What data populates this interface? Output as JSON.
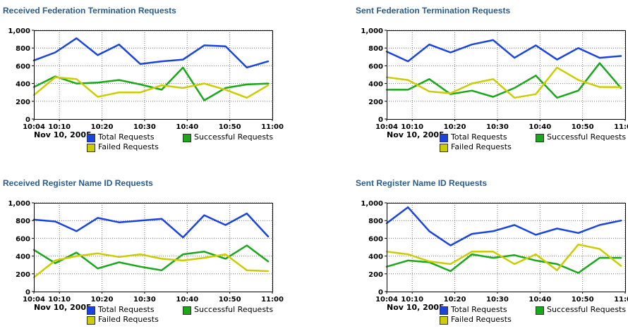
{
  "chart_data": [
    {
      "type": "line",
      "title": "Received Federation Termination Requests",
      "date_label": "Nov 10, 2005",
      "x_tick_labels": [
        "10:04",
        "10:10",
        "10:20",
        "10:30",
        "10:40",
        "10:50",
        "11:00"
      ],
      "y_tick_labels": [
        "0",
        "200",
        "400",
        "600",
        "800",
        "1,000"
      ],
      "ylim": [
        0,
        1000
      ],
      "grid": true,
      "x": [
        "10:04",
        "10:09",
        "10:14",
        "10:19",
        "10:24",
        "10:29",
        "10:34",
        "10:39",
        "10:44",
        "10:49",
        "10:54",
        "10:59"
      ],
      "series": [
        {
          "name": "Total Requests",
          "color": "#1a44e0",
          "values": [
            660,
            750,
            910,
            720,
            840,
            620,
            650,
            670,
            830,
            820,
            580,
            650
          ]
        },
        {
          "name": "Successful Requests",
          "color": "#1aa81a",
          "values": [
            360,
            480,
            400,
            410,
            440,
            390,
            330,
            580,
            210,
            350,
            390,
            400
          ]
        },
        {
          "name": "Failed Requests",
          "color": "#cccc00",
          "values": [
            270,
            470,
            450,
            250,
            300,
            300,
            380,
            350,
            400,
            330,
            240,
            380
          ]
        }
      ]
    },
    {
      "type": "line",
      "title": "Sent Federation Termination Requests",
      "date_label": "Nov 10, 2005",
      "x_tick_labels": [
        "10:04",
        "10:10",
        "10:20",
        "10:30",
        "10:40",
        "10:50",
        "11:00"
      ],
      "y_tick_labels": [
        "0",
        "200",
        "400",
        "600",
        "800",
        "1,000"
      ],
      "ylim": [
        0,
        1000
      ],
      "grid": true,
      "x": [
        "10:04",
        "10:09",
        "10:14",
        "10:19",
        "10:24",
        "10:29",
        "10:34",
        "10:39",
        "10:44",
        "10:49",
        "10:54",
        "10:59"
      ],
      "series": [
        {
          "name": "Total Requests",
          "color": "#1a44e0",
          "values": [
            760,
            650,
            840,
            750,
            840,
            890,
            690,
            830,
            670,
            800,
            690,
            710
          ]
        },
        {
          "name": "Successful Requests",
          "color": "#1aa81a",
          "values": [
            330,
            330,
            450,
            280,
            320,
            250,
            350,
            490,
            240,
            320,
            630,
            350
          ]
        },
        {
          "name": "Failed Requests",
          "color": "#cccc00",
          "values": [
            470,
            440,
            310,
            290,
            400,
            450,
            240,
            280,
            580,
            440,
            360,
            360
          ]
        }
      ]
    },
    {
      "type": "line",
      "title": "Received Register Name ID Requests",
      "date_label": "Nov 10, 2005",
      "x_tick_labels": [
        "10:04",
        "10:10",
        "10:20",
        "10:30",
        "10:40",
        "10:50",
        "11:00"
      ],
      "y_tick_labels": [
        "0",
        "200",
        "400",
        "600",
        "800",
        "1,000"
      ],
      "ylim": [
        0,
        1000
      ],
      "grid": true,
      "x": [
        "10:04",
        "10:09",
        "10:14",
        "10:19",
        "10:24",
        "10:29",
        "10:34",
        "10:39",
        "10:44",
        "10:49",
        "10:54",
        "10:59"
      ],
      "series": [
        {
          "name": "Total Requests",
          "color": "#1a44e0",
          "values": [
            810,
            790,
            680,
            830,
            780,
            800,
            820,
            610,
            860,
            750,
            880,
            620
          ]
        },
        {
          "name": "Successful Requests",
          "color": "#1aa81a",
          "values": [
            470,
            320,
            440,
            260,
            330,
            280,
            240,
            420,
            450,
            370,
            520,
            340
          ]
        },
        {
          "name": "Failed Requests",
          "color": "#cccc00",
          "values": [
            160,
            350,
            400,
            430,
            390,
            420,
            370,
            350,
            380,
            420,
            240,
            230
          ]
        }
      ]
    },
    {
      "type": "line",
      "title": "Sent Register Name ID Requests",
      "date_label": "Nov 10, 2005",
      "x_tick_labels": [
        "10:04",
        "10:10",
        "10:20",
        "10:30",
        "10:40",
        "10:50",
        "11:00"
      ],
      "y_tick_labels": [
        "0",
        "200",
        "400",
        "600",
        "800",
        "1,000"
      ],
      "ylim": [
        0,
        1000
      ],
      "grid": true,
      "x": [
        "10:04",
        "10:09",
        "10:14",
        "10:19",
        "10:24",
        "10:29",
        "10:34",
        "10:39",
        "10:44",
        "10:49",
        "10:54",
        "10:59"
      ],
      "series": [
        {
          "name": "Total Requests",
          "color": "#1a44e0",
          "values": [
            770,
            950,
            680,
            520,
            650,
            680,
            750,
            640,
            710,
            660,
            750,
            800
          ]
        },
        {
          "name": "Successful Requests",
          "color": "#1aa81a",
          "values": [
            280,
            350,
            330,
            230,
            420,
            380,
            410,
            350,
            310,
            210,
            380,
            380
          ]
        },
        {
          "name": "Failed Requests",
          "color": "#cccc00",
          "values": [
            450,
            420,
            340,
            310,
            450,
            450,
            310,
            420,
            240,
            530,
            480,
            290
          ]
        }
      ]
    }
  ]
}
